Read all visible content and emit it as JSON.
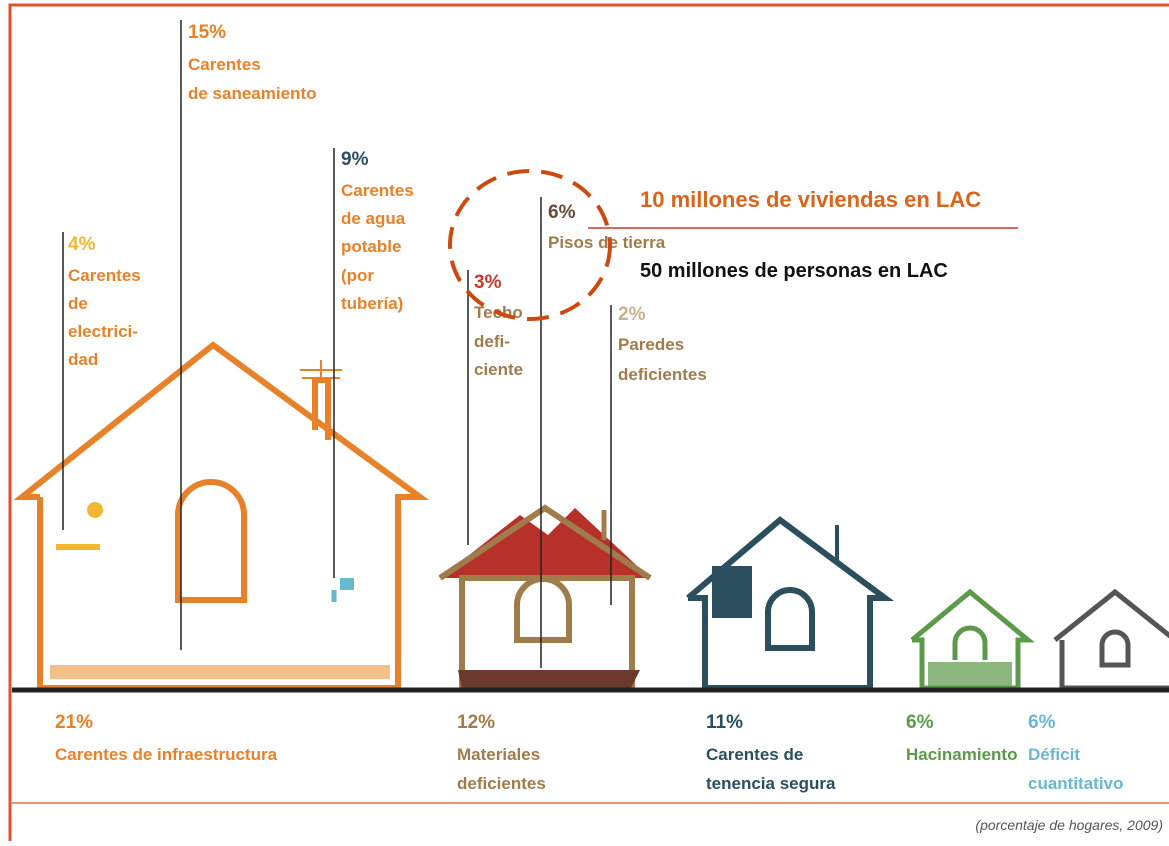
{
  "top_labels": [
    {
      "percent": "15%",
      "lines": [
        "Carentes",
        "de saneamiento"
      ]
    },
    {
      "percent": "9%",
      "lines": [
        "Carentes",
        "de agua",
        "potable",
        "(por",
        "tubería)"
      ]
    },
    {
      "percent": "4%",
      "lines": [
        "Carentes",
        "de",
        "electrici-",
        "dad"
      ]
    },
    {
      "percent": "3%",
      "lines": [
        "Techo",
        "defi-",
        "ciente"
      ]
    },
    {
      "percent": "6%",
      "lines": [
        "Pisos de tierra"
      ]
    },
    {
      "percent": "2%",
      "lines": [
        "Paredes",
        "deficientes"
      ]
    }
  ],
  "callouts": [
    "10 millones de viviendas en LAC",
    "50 millones de personas en LAC"
  ],
  "bottom_labels": [
    {
      "percent": "21%",
      "lines": [
        "Carentes de infraestructura"
      ]
    },
    {
      "percent": "12%",
      "lines": [
        "Materiales",
        "deficientes"
      ]
    },
    {
      "percent": "11%",
      "lines": [
        "Carentes de",
        "tenencia segura"
      ]
    },
    {
      "percent": "6%",
      "lines": [
        "Hacinamiento"
      ]
    },
    {
      "percent": "6%",
      "lines": [
        "Déficit",
        "cuantitativo"
      ]
    }
  ],
  "note": "(porcentaje de hogares, 2009)"
}
